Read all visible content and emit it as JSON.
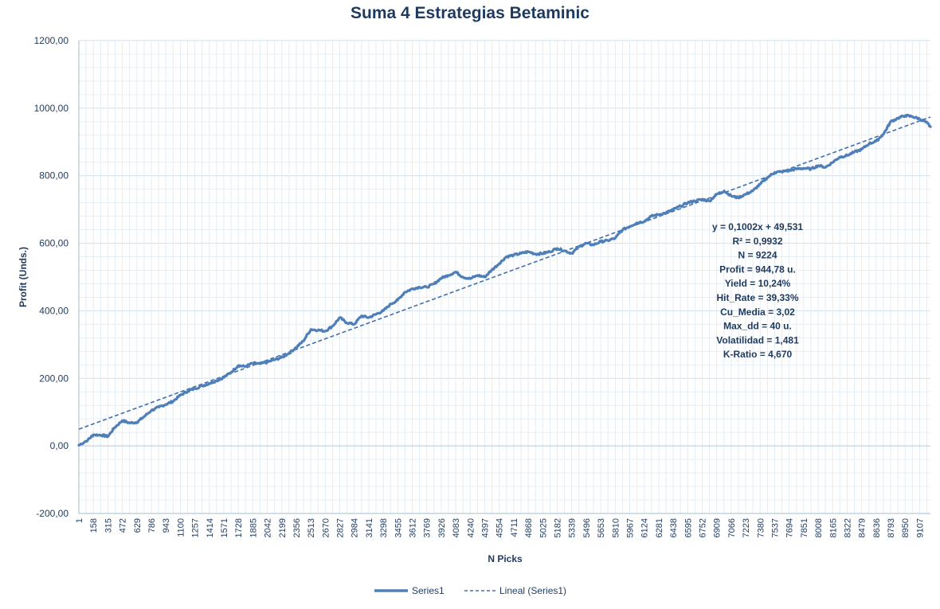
{
  "chart_data": {
    "type": "line",
    "title": "Suma 4 Estrategias Betaminic",
    "xlabel": "N Picks",
    "ylabel": "Profit (Unds.)",
    "ylim": [
      -200,
      1200
    ],
    "xlim": [
      1,
      9224
    ],
    "y_ticks": [
      "1200,00",
      "1000,00",
      "800,00",
      "600,00",
      "400,00",
      "200,00",
      "0,00",
      "-200,00"
    ],
    "x_ticks": [
      "1",
      "158",
      "315",
      "472",
      "629",
      "786",
      "943",
      "1100",
      "1257",
      "1414",
      "1571",
      "1728",
      "1885",
      "2042",
      "2199",
      "2356",
      "2513",
      "2670",
      "2827",
      "2984",
      "3141",
      "3298",
      "3455",
      "3612",
      "3769",
      "3926",
      "4083",
      "4240",
      "4397",
      "4554",
      "4711",
      "4868",
      "5025",
      "5182",
      "5339",
      "5496",
      "5653",
      "5810",
      "5967",
      "6124",
      "6281",
      "6438",
      "6595",
      "6752",
      "6909",
      "7066",
      "7223",
      "7380",
      "7537",
      "7694",
      "7851",
      "8008",
      "8165",
      "8322",
      "8479",
      "8636",
      "8793",
      "8950",
      "9107"
    ],
    "grid": true,
    "legend_position": "bottom",
    "series": [
      {
        "name": "Series1",
        "color": "#4f7fb8",
        "x": [
          1,
          100,
          158,
          250,
          315,
          390,
          472,
          550,
          629,
          700,
          786,
          870,
          943,
          1020,
          1100,
          1180,
          1257,
          1340,
          1414,
          1490,
          1571,
          1650,
          1728,
          1800,
          1885,
          1960,
          2042,
          2120,
          2199,
          2280,
          2356,
          2430,
          2513,
          2590,
          2670,
          2750,
          2827,
          2900,
          2984,
          3060,
          3141,
          3220,
          3298,
          3380,
          3455,
          3530,
          3612,
          3690,
          3769,
          3850,
          3926,
          4000,
          4083,
          4160,
          4240,
          4320,
          4397,
          4470,
          4554,
          4630,
          4711,
          4790,
          4868,
          4950,
          5025,
          5100,
          5182,
          5260,
          5339,
          5420,
          5496,
          5570,
          5653,
          5730,
          5810,
          5890,
          5967,
          6040,
          6124,
          6200,
          6281,
          6360,
          6438,
          6520,
          6595,
          6670,
          6752,
          6830,
          6909,
          6990,
          7066,
          7140,
          7223,
          7300,
          7380,
          7460,
          7537,
          7610,
          7694,
          7770,
          7851,
          7930,
          8008,
          8090,
          8165,
          8240,
          8322,
          8400,
          8479,
          8560,
          8636,
          8720,
          8793,
          8870,
          8950,
          9030,
          9107,
          9180,
          9224
        ],
        "values": [
          2,
          18,
          33,
          32,
          28,
          55,
          75,
          68,
          70,
          85,
          105,
          115,
          123,
          132,
          150,
          162,
          170,
          178,
          185,
          193,
          203,
          218,
          238,
          235,
          245,
          243,
          248,
          255,
          262,
          275,
          292,
          310,
          345,
          343,
          340,
          355,
          380,
          365,
          360,
          385,
          380,
          390,
          400,
          420,
          432,
          455,
          465,
          470,
          470,
          480,
          497,
          505,
          515,
          500,
          495,
          505,
          500,
          520,
          540,
          560,
          565,
          570,
          575,
          568,
          570,
          575,
          585,
          578,
          570,
          590,
          600,
          595,
          605,
          608,
          615,
          640,
          650,
          660,
          665,
          680,
          685,
          690,
          700,
          710,
          720,
          725,
          730,
          725,
          745,
          755,
          740,
          735,
          745,
          755,
          775,
          795,
          810,
          812,
          815,
          820,
          822,
          820,
          830,
          825,
          840,
          855,
          860,
          870,
          878,
          895,
          902,
          925,
          960,
          970,
          978,
          975,
          968,
          958,
          945
        ]
      },
      {
        "name": "Lineal (Series1)",
        "color": "#3f6fae",
        "style": "dashed",
        "x": [
          1,
          9224
        ],
        "values": [
          49.63,
          973.8
        ]
      }
    ],
    "annotations": [
      "y = 0,1002x + 49,531",
      "R² = 0,9932",
      "N = 9224",
      "Profit = 944,78 u.",
      "Yield = 10,24%",
      "Hit_Rate = 39,33%",
      "Cu_Media = 3,02",
      "Max_dd = 40 u.",
      "Volatilidad = 1,481",
      "K-Ratio = 4,670"
    ]
  }
}
